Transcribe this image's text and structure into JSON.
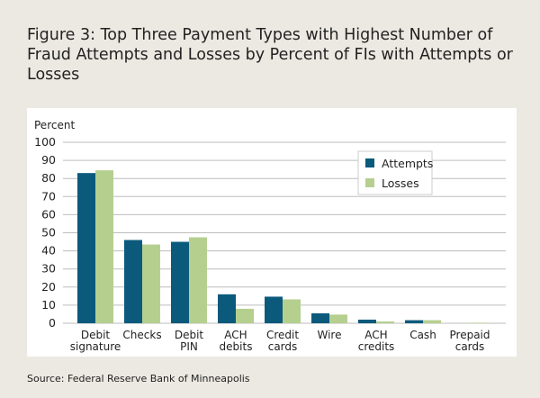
{
  "title": "Figure 3: Top Three Payment Types with Highest Number of Fraud Attempts and Losses by Percent of FIs with Attempts or Losses",
  "source": "Source: Federal Reserve Bank of Minneapolis",
  "chart_data": {
    "type": "bar",
    "title": "Figure 3: Top Three Payment Types with Highest Number of Fraud Attempts and Losses by Percent of FIs with Attempts or Losses",
    "ylabel": "Percent",
    "ylim": [
      0,
      100
    ],
    "yticks": [
      0,
      10,
      20,
      30,
      40,
      50,
      60,
      70,
      80,
      90,
      100
    ],
    "grid": true,
    "legend": "top-right",
    "categories": [
      [
        "Debit",
        "signature"
      ],
      [
        "Checks"
      ],
      [
        "Debit",
        "PIN"
      ],
      [
        "ACH",
        "debits"
      ],
      [
        "Credit",
        "cards"
      ],
      [
        "Wire"
      ],
      [
        "ACH",
        "credits"
      ],
      [
        "Cash"
      ],
      [
        "Prepaid",
        "cards"
      ]
    ],
    "series": [
      {
        "name": "Attempts",
        "color": "#0b5a7c",
        "values": [
          83,
          46,
          45,
          16,
          14.7,
          5.5,
          2,
          1.7,
          0
        ]
      },
      {
        "name": "Losses",
        "color": "#b5cf8f",
        "values": [
          84.5,
          43.5,
          47.5,
          8,
          13.2,
          4.8,
          1,
          1.7,
          0.3
        ]
      }
    ]
  }
}
